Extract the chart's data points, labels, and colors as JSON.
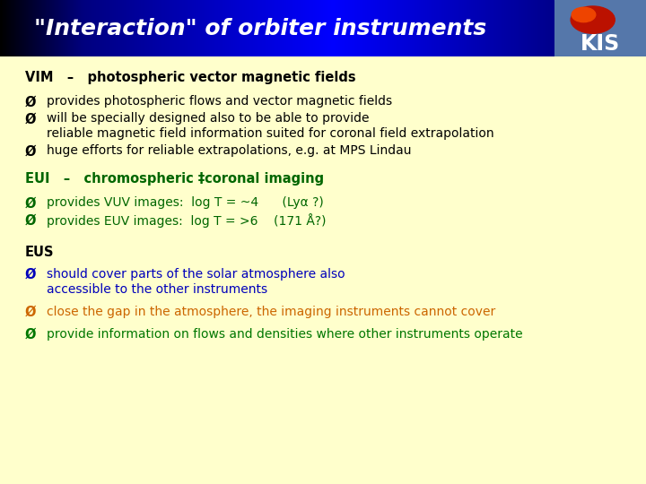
{
  "title": "\"Interaction\" of orbiter instruments",
  "title_color": "#ffffff",
  "body_bg_color": "#ffffcc",
  "vim_header": "VIM   –   photospheric vector magnetic fields",
  "vim_bullets": [
    "provides photospheric flows and vector magnetic fields",
    "will be specially designed also to be able to provide",
    "reliable magnetic field information suited for coronal field extrapolation",
    "huge efforts for reliable extrapolations, e.g. at MPS Lindau"
  ],
  "vim_bullet_wrap": [
    0,
    1,
    1,
    0
  ],
  "eui_header": "EUI   –   chromospheric ‡coronal imaging",
  "eui_bullets": [
    "provides VUV images:  log T = ~4      (Lyα ?)",
    "provides EUV images:  log T = >6    (171 Å?)"
  ],
  "eus_header": "EUS",
  "eus_bullets": [
    "should cover parts of the solar atmosphere also",
    "accessible to the other instruments",
    "close the gap in the atmosphere, the imaging instruments cannot cover",
    "provide information on flows and densities where other instruments operate"
  ],
  "eus_bullet_group": [
    0,
    0,
    1,
    2
  ],
  "vim_header_color": "#000000",
  "vim_bullet_color": "#000000",
  "eui_header_color": "#006600",
  "eui_bullet_color": "#006600",
  "eus_header_color": "#000000",
  "eus_bullet_colors": [
    "#0000bb",
    "#0000bb",
    "#cc6600",
    "#007700"
  ],
  "bullet_char": "Ø",
  "kis_logo_bg": "#5577aa",
  "kis_text": "KIS",
  "title_fontsize": 18,
  "header_fontsize": 10.5,
  "body_fontsize": 10
}
